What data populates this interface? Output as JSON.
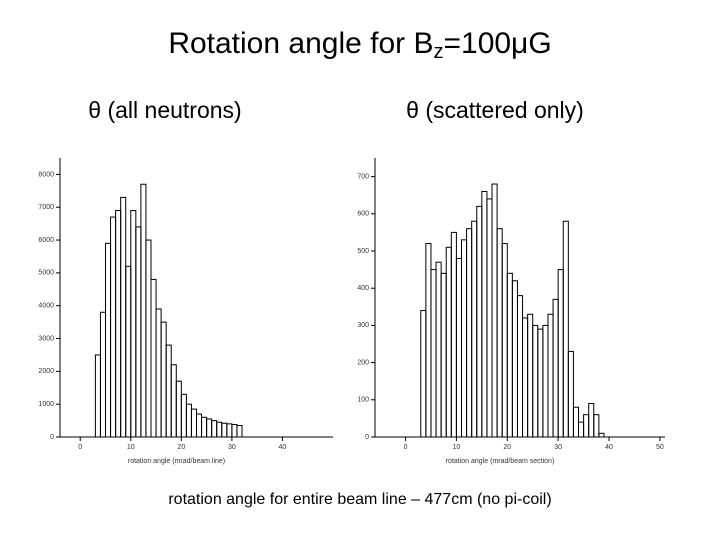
{
  "title": {
    "main": "Rotation angle for B",
    "subscript": "z",
    "rest": "=100μG"
  },
  "caption": "rotation angle for entire beam line – 477cm (no pi-coil)",
  "chart_data": [
    {
      "type": "histogram",
      "title": "θ  (all neutrons)",
      "x_label": "rotation angle (mrad/beam line)",
      "bins": [
        3,
        4,
        5,
        6,
        7,
        8,
        9,
        10,
        11,
        12,
        13,
        14,
        15,
        16,
        17,
        18,
        19,
        20,
        21,
        22,
        23,
        24,
        25,
        26,
        27,
        28,
        29,
        30,
        31,
        32
      ],
      "values": [
        2500,
        3800,
        5900,
        6700,
        6900,
        7300,
        5200,
        6900,
        6400,
        7700,
        6000,
        4800,
        3900,
        3500,
        2800,
        2200,
        1700,
        1300,
        1000,
        850,
        700,
        600,
        550,
        500,
        450,
        420,
        400,
        380,
        350
      ],
      "color": "#000000",
      "xlim": [
        -4,
        50
      ],
      "xticks": [
        0,
        10,
        20,
        30,
        40
      ],
      "ylim": [
        0,
        8500
      ],
      "yticks": [
        0,
        1000,
        2000,
        3000,
        4000,
        5000,
        6000,
        7000,
        8000
      ]
    },
    {
      "type": "histogram",
      "title": "θ  (scattered only)",
      "x_label": "rotation angle (mrad/beam section)",
      "bins": [
        3,
        4,
        5,
        6,
        7,
        8,
        9,
        10,
        11,
        12,
        13,
        14,
        15,
        16,
        17,
        18,
        19,
        20,
        21,
        22,
        23,
        24,
        25,
        26,
        27,
        28,
        29,
        30,
        31,
        32,
        33,
        34,
        35,
        36,
        37,
        38,
        39
      ],
      "values": [
        340,
        520,
        450,
        470,
        440,
        510,
        550,
        480,
        530,
        560,
        580,
        620,
        660,
        640,
        680,
        560,
        520,
        440,
        420,
        380,
        320,
        330,
        300,
        290,
        300,
        330,
        370,
        450,
        580,
        230,
        80,
        40,
        60,
        90,
        60,
        10
      ],
      "color": "#000000",
      "xlim": [
        -6,
        51
      ],
      "xticks": [
        0,
        10,
        20,
        30,
        40,
        50
      ],
      "ylim": [
        0,
        750
      ],
      "yticks": [
        0,
        100,
        200,
        300,
        400,
        500,
        600,
        700
      ]
    }
  ]
}
